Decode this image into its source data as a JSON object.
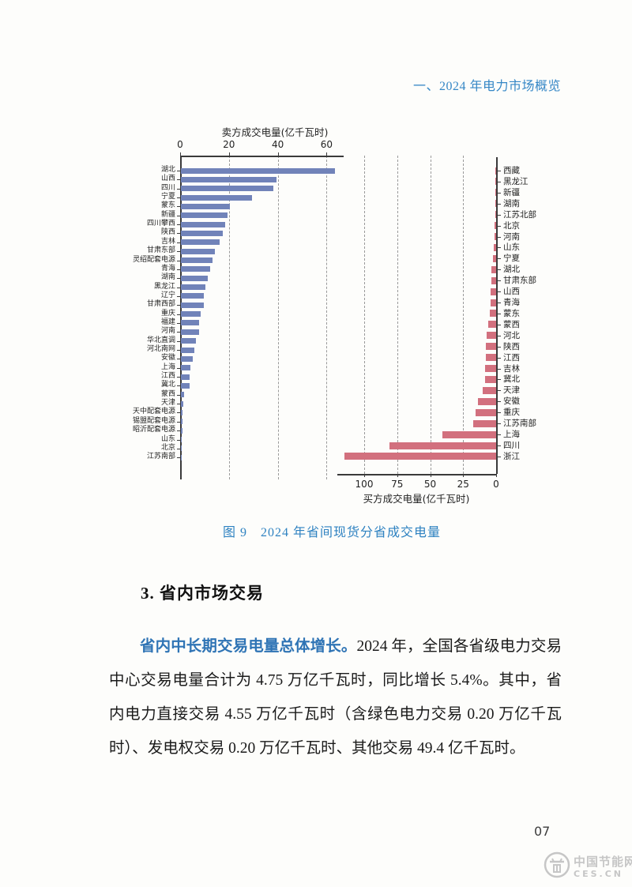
{
  "page": {
    "header": "一、2024 年电力市场概览",
    "page_number": "07",
    "watermark": {
      "line1": "中国节能网",
      "line2": "CES.CN"
    }
  },
  "figure": {
    "caption": "图 9　2024 年省间现货分省成交电量"
  },
  "section": {
    "heading": "3. 省内市场交易"
  },
  "paragraph": {
    "lead": "省内中长期交易电量总体增长。",
    "rest": "2024 年，全国各省级电力交易中心交易电量合计为 4.75 万亿千瓦时，同比增长 5.4%。其中，省内电力直接交易 4.55 万亿千瓦时（含绿色电力交易 0.20 万亿千瓦时）、发电权交易 0.20 万亿千瓦时、其他交易 49.4 亿千瓦时。"
  },
  "colors": {
    "header_blue": "#3587c6",
    "caption_blue": "#2e82c1",
    "lead_blue": "#2f74b5",
    "seller_bar": "#7183b9",
    "buyer_bar": "#d2707e"
  },
  "chart_data": [
    {
      "type": "bar",
      "orientation": "horizontal-right",
      "title": "卖方成交电量(亿千瓦时)",
      "axis_position": "top",
      "axis_ticks": [
        0,
        20,
        40,
        60
      ],
      "xlim": [
        0,
        66
      ],
      "grid": "dashed-vertical",
      "bar_color": "#7183b9",
      "categories": [
        "湖北",
        "山西",
        "四川",
        "宁夏",
        "蒙东",
        "新疆",
        "四川攀西",
        "陕西",
        "吉林",
        "甘肃东部",
        "灵绍配套电源",
        "青海",
        "湖南",
        "黑龙江",
        "辽宁",
        "甘肃西部",
        "重庆",
        "福建",
        "河南",
        "华北直调",
        "河北南网",
        "安徽",
        "上海",
        "江西",
        "冀北",
        "蒙西",
        "天津",
        "天中配套电源",
        "锡盟配套电源",
        "昭沂配套电源",
        "山东",
        "北京",
        "江苏南部"
      ],
      "values": [
        63,
        39,
        38,
        29,
        20,
        19,
        18,
        17,
        16,
        14,
        13,
        12,
        11,
        10,
        9.5,
        9.5,
        8,
        7.5,
        7.5,
        6,
        5.5,
        5,
        4,
        3.5,
        3.5,
        1.2,
        1.0,
        0.8,
        0.6,
        0.5,
        0.4,
        0.3,
        0.2
      ]
    },
    {
      "type": "bar",
      "orientation": "horizontal-left",
      "title": "买方成交电量(亿千瓦时)",
      "axis_position": "bottom",
      "axis_ticks": [
        100,
        75,
        50,
        25,
        0
      ],
      "xlim": [
        0,
        118
      ],
      "grid": "dashed-vertical",
      "bar_color": "#d2707e",
      "categories": [
        "西藏",
        "黑龙江",
        "新疆",
        "湖南",
        "江苏北部",
        "北京",
        "河南",
        "山东",
        "宁夏",
        "湖北",
        "甘肃东部",
        "山西",
        "青海",
        "蒙东",
        "蒙西",
        "河北",
        "陕西",
        "江西",
        "吉林",
        "冀北",
        "天津",
        "安徽",
        "重庆",
        "江苏南部",
        "上海",
        "四川",
        "浙江"
      ],
      "values": [
        0.3,
        0.4,
        0.5,
        0.6,
        0.8,
        1.0,
        1.2,
        1.5,
        2.5,
        3.4,
        3.5,
        4,
        4,
        5,
        6,
        7,
        7.5,
        7.5,
        8.5,
        8.5,
        10,
        14,
        15.5,
        17.5,
        41,
        81,
        115
      ]
    }
  ]
}
